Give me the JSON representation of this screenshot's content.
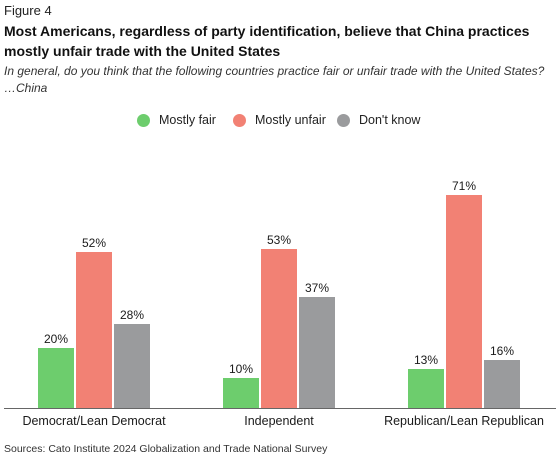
{
  "figure_label": "Figure 4",
  "title": "Most Americans, regardless of party identification, believe that China practices mostly unfair trade with the United States",
  "subtitle": "In general, do you think that the following countries practice fair or unfair trade with the United States? …China",
  "source": "Sources: Cato Institute 2024 Globalization and Trade National Survey",
  "colors": {
    "mostly_fair": "#6dcd6d",
    "mostly_unfair": "#f28174",
    "dont_know": "#9a9b9d",
    "axis": "#666666"
  },
  "chart_data": {
    "type": "bar",
    "categories": [
      "Democrat/Lean Democrat",
      "Independent",
      "Republican/Lean Republican"
    ],
    "series": [
      {
        "name": "Mostly fair",
        "values": [
          20,
          10,
          13
        ],
        "labels": [
          "20%",
          "10%",
          "13%"
        ]
      },
      {
        "name": "Mostly unfair",
        "values": [
          52,
          53,
          71
        ],
        "labels": [
          "52%",
          "53%",
          "71%"
        ]
      },
      {
        "name": "Don't know",
        "values": [
          28,
          37,
          16
        ],
        "labels": [
          "28%",
          "37%",
          "16%"
        ]
      }
    ],
    "ylim": [
      0,
      85
    ],
    "legend_position": "top-center",
    "grid": false
  }
}
